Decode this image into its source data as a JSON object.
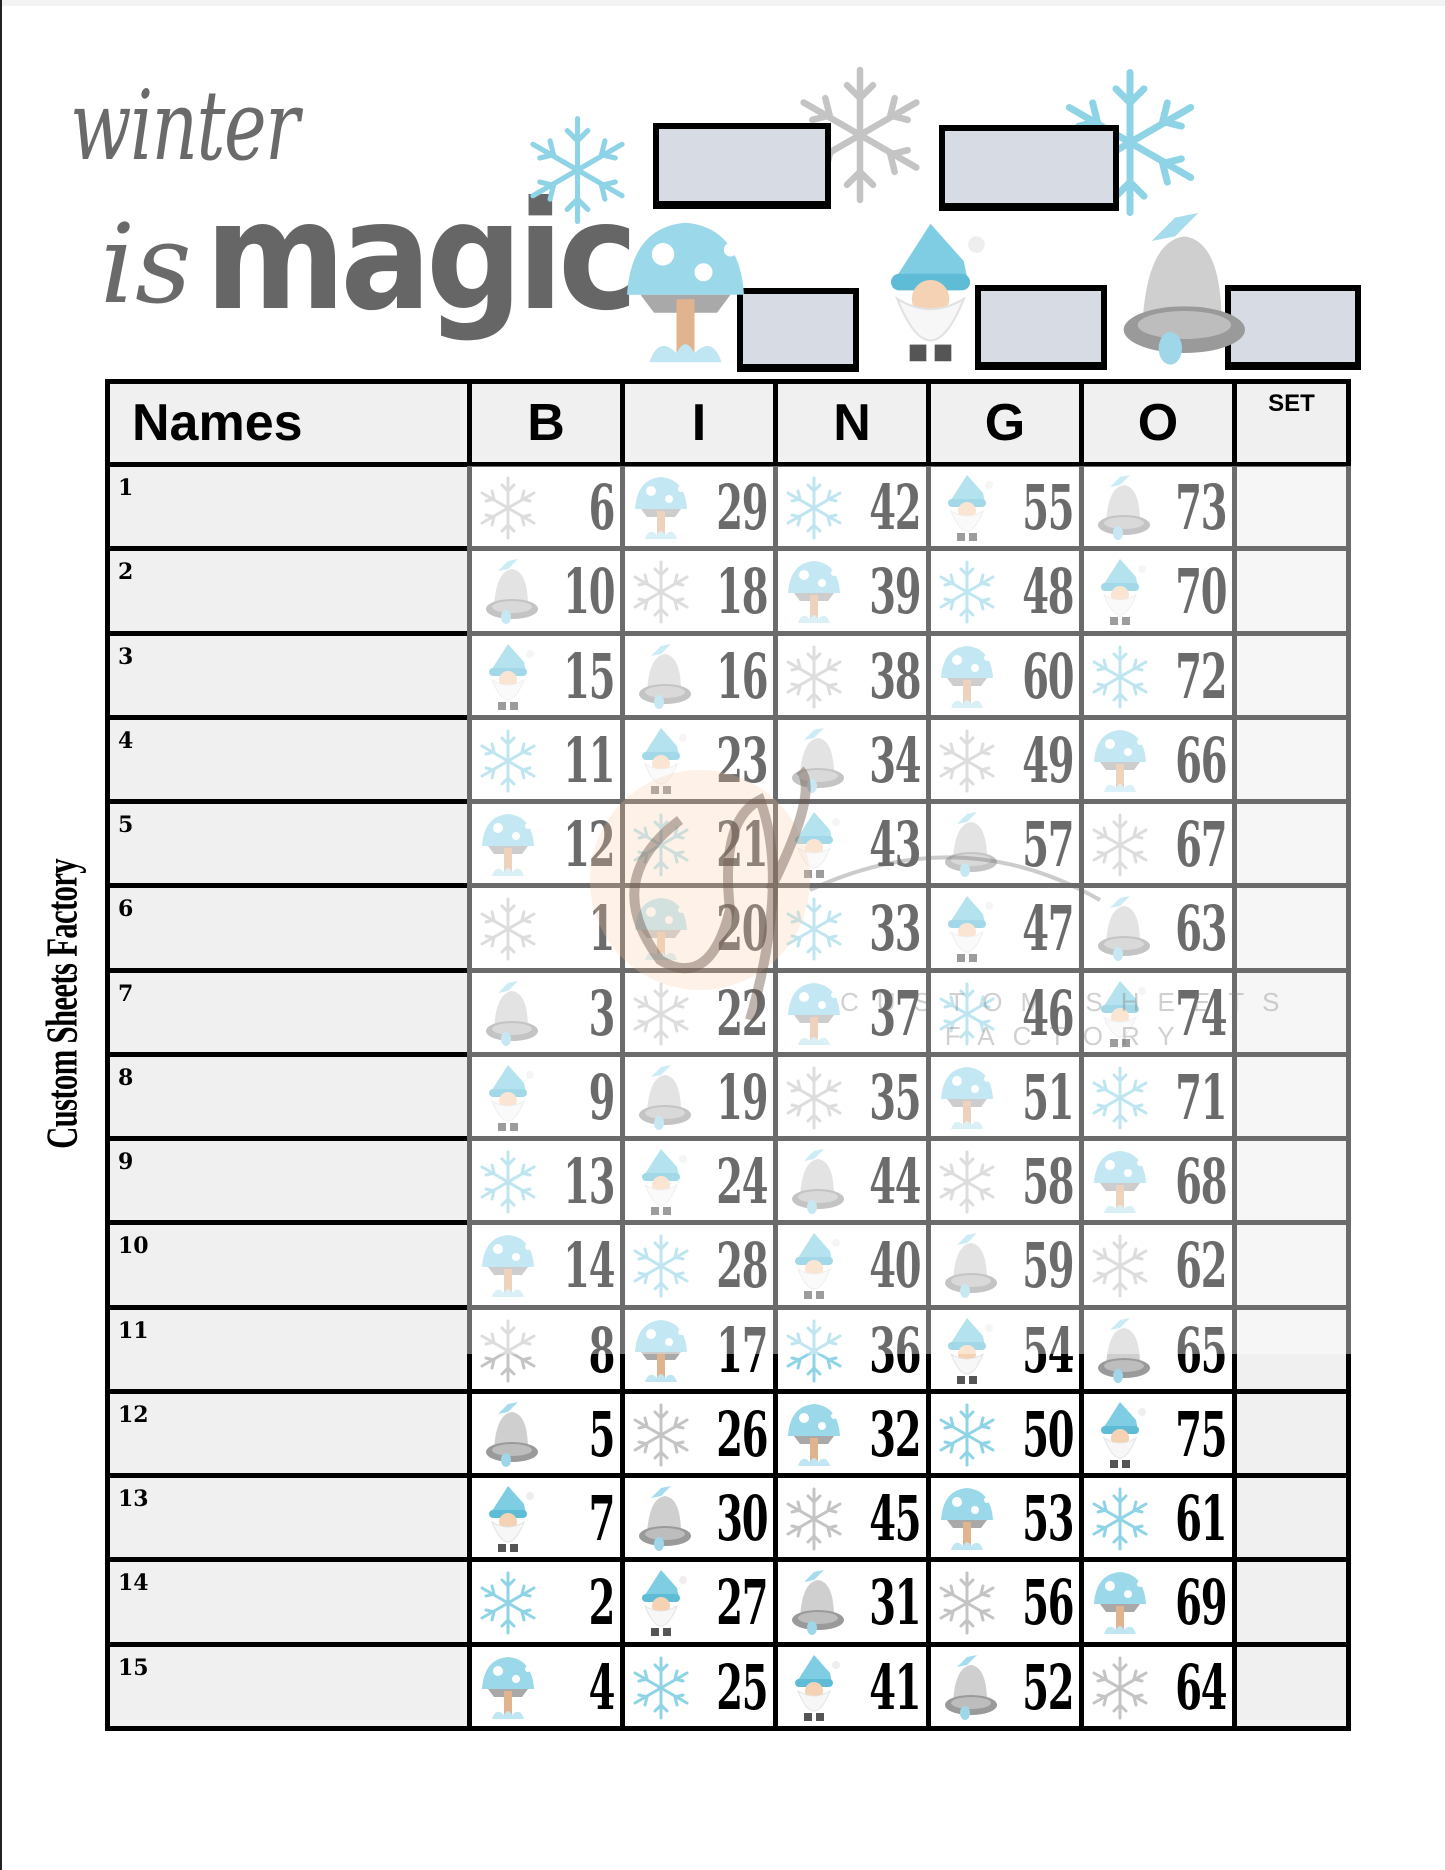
{
  "title": {
    "line1": "winter",
    "line2a": "is",
    "line2b": "magic"
  },
  "brand_side": "Custom Sheets Factory",
  "watermark": {
    "logo": "csf",
    "line1": "CUSTOM SHEETS",
    "line2": "FACTORY"
  },
  "header": {
    "names": "Names",
    "letters": [
      "B",
      "I",
      "N",
      "G",
      "O"
    ],
    "set": "SET"
  },
  "colors": {
    "box_fill": "#d6dbe4",
    "icy_blue": "#8fd3e6",
    "silver": "#b8b8b8",
    "name_fill": "#f0f0f0"
  },
  "rows": [
    {
      "label": "1",
      "cells": [
        {
          "n": "6",
          "icon": "snowflake-gray"
        },
        {
          "n": "29",
          "icon": "mushroom"
        },
        {
          "n": "42",
          "icon": "snowflake-blue"
        },
        {
          "n": "55",
          "icon": "gnome"
        },
        {
          "n": "73",
          "icon": "bell"
        }
      ]
    },
    {
      "label": "2",
      "cells": [
        {
          "n": "10",
          "icon": "bell"
        },
        {
          "n": "18",
          "icon": "snowflake-gray"
        },
        {
          "n": "39",
          "icon": "mushroom"
        },
        {
          "n": "48",
          "icon": "snowflake-blue"
        },
        {
          "n": "70",
          "icon": "gnome"
        }
      ]
    },
    {
      "label": "3",
      "cells": [
        {
          "n": "15",
          "icon": "gnome"
        },
        {
          "n": "16",
          "icon": "bell"
        },
        {
          "n": "38",
          "icon": "snowflake-gray"
        },
        {
          "n": "60",
          "icon": "mushroom"
        },
        {
          "n": "72",
          "icon": "snowflake-blue"
        }
      ]
    },
    {
      "label": "4",
      "cells": [
        {
          "n": "11",
          "icon": "snowflake-blue"
        },
        {
          "n": "23",
          "icon": "gnome"
        },
        {
          "n": "34",
          "icon": "bell"
        },
        {
          "n": "49",
          "icon": "snowflake-gray"
        },
        {
          "n": "66",
          "icon": "mushroom"
        }
      ]
    },
    {
      "label": "5",
      "cells": [
        {
          "n": "12",
          "icon": "mushroom"
        },
        {
          "n": "21",
          "icon": "snowflake-blue"
        },
        {
          "n": "43",
          "icon": "gnome"
        },
        {
          "n": "57",
          "icon": "bell"
        },
        {
          "n": "67",
          "icon": "snowflake-gray"
        }
      ]
    },
    {
      "label": "6",
      "cells": [
        {
          "n": "1",
          "icon": "snowflake-gray"
        },
        {
          "n": "20",
          "icon": "mushroom"
        },
        {
          "n": "33",
          "icon": "snowflake-blue"
        },
        {
          "n": "47",
          "icon": "gnome"
        },
        {
          "n": "63",
          "icon": "bell"
        }
      ]
    },
    {
      "label": "7",
      "cells": [
        {
          "n": "3",
          "icon": "bell"
        },
        {
          "n": "22",
          "icon": "snowflake-gray"
        },
        {
          "n": "37",
          "icon": "mushroom"
        },
        {
          "n": "46",
          "icon": "snowflake-blue"
        },
        {
          "n": "74",
          "icon": "gnome"
        }
      ]
    },
    {
      "label": "8",
      "cells": [
        {
          "n": "9",
          "icon": "gnome"
        },
        {
          "n": "19",
          "icon": "bell"
        },
        {
          "n": "35",
          "icon": "snowflake-gray"
        },
        {
          "n": "51",
          "icon": "mushroom"
        },
        {
          "n": "71",
          "icon": "snowflake-blue"
        }
      ]
    },
    {
      "label": "9",
      "cells": [
        {
          "n": "13",
          "icon": "snowflake-blue"
        },
        {
          "n": "24",
          "icon": "gnome"
        },
        {
          "n": "44",
          "icon": "bell"
        },
        {
          "n": "58",
          "icon": "snowflake-gray"
        },
        {
          "n": "68",
          "icon": "mushroom"
        }
      ]
    },
    {
      "label": "10",
      "cells": [
        {
          "n": "14",
          "icon": "mushroom"
        },
        {
          "n": "28",
          "icon": "snowflake-blue"
        },
        {
          "n": "40",
          "icon": "gnome"
        },
        {
          "n": "59",
          "icon": "bell"
        },
        {
          "n": "62",
          "icon": "snowflake-gray"
        }
      ]
    },
    {
      "label": "11",
      "cells": [
        {
          "n": "8",
          "icon": "snowflake-gray"
        },
        {
          "n": "17",
          "icon": "mushroom"
        },
        {
          "n": "36",
          "icon": "snowflake-blue"
        },
        {
          "n": "54",
          "icon": "gnome"
        },
        {
          "n": "65",
          "icon": "bell"
        }
      ]
    },
    {
      "label": "12",
      "cells": [
        {
          "n": "5",
          "icon": "bell"
        },
        {
          "n": "26",
          "icon": "snowflake-gray"
        },
        {
          "n": "32",
          "icon": "mushroom"
        },
        {
          "n": "50",
          "icon": "snowflake-blue"
        },
        {
          "n": "75",
          "icon": "gnome"
        }
      ]
    },
    {
      "label": "13",
      "cells": [
        {
          "n": "7",
          "icon": "gnome"
        },
        {
          "n": "30",
          "icon": "bell"
        },
        {
          "n": "45",
          "icon": "snowflake-gray"
        },
        {
          "n": "53",
          "icon": "mushroom"
        },
        {
          "n": "61",
          "icon": "snowflake-blue"
        }
      ]
    },
    {
      "label": "14",
      "cells": [
        {
          "n": "2",
          "icon": "snowflake-blue"
        },
        {
          "n": "27",
          "icon": "gnome"
        },
        {
          "n": "31",
          "icon": "bell"
        },
        {
          "n": "56",
          "icon": "snowflake-gray"
        },
        {
          "n": "69",
          "icon": "mushroom"
        }
      ]
    },
    {
      "label": "15",
      "cells": [
        {
          "n": "4",
          "icon": "mushroom"
        },
        {
          "n": "25",
          "icon": "snowflake-blue"
        },
        {
          "n": "41",
          "icon": "gnome"
        },
        {
          "n": "52",
          "icon": "bell"
        },
        {
          "n": "64",
          "icon": "snowflake-gray"
        }
      ]
    }
  ]
}
